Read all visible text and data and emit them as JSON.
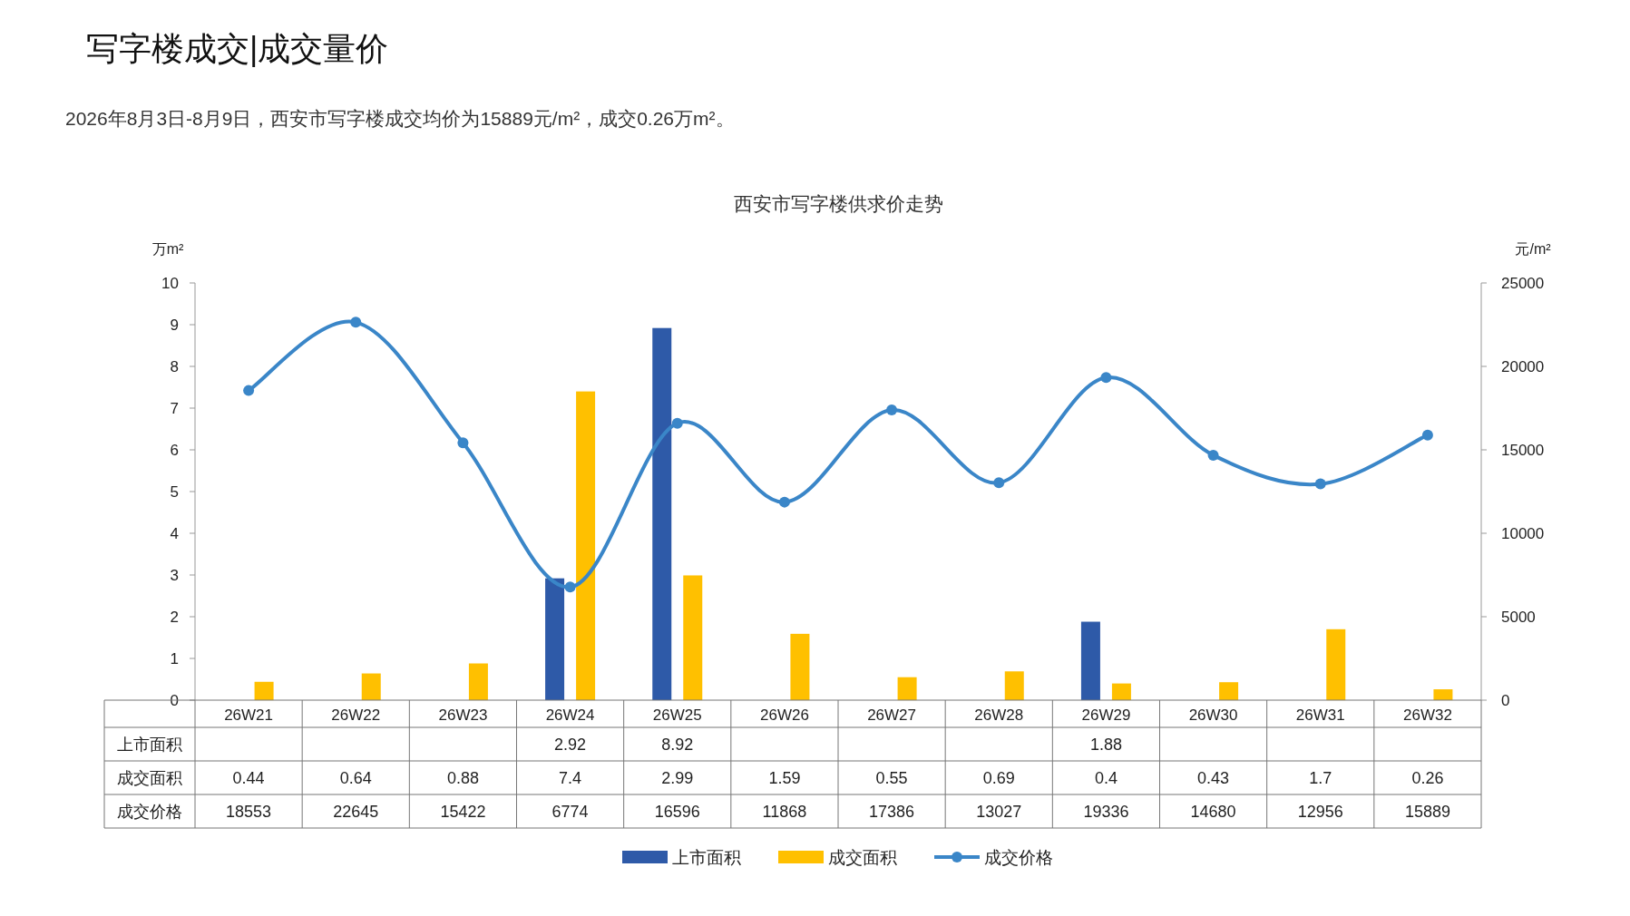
{
  "chart_data": {
    "type": "bar",
    "title": "西安市写字楼供求价走势",
    "ylabel": "万m²",
    "y2label": "元/m²",
    "annotations": [
      "写字楼成交|成交量价",
      "2026年8月3日-8月9日，西安市写字楼成交均价为15889元/m²，成交0.26万m²。"
    ],
    "categories": [
      "26W21",
      "26W22",
      "26W23",
      "26W24",
      "26W25",
      "26W26",
      "26W27",
      "26W28",
      "26W29",
      "26W30",
      "26W31",
      "26W32"
    ],
    "series": [
      {
        "name": "上市面积",
        "color": "#2e5aa8",
        "values": [
          null,
          null,
          null,
          2.92,
          8.92,
          null,
          null,
          null,
          1.88,
          null,
          null,
          null
        ]
      },
      {
        "name": "成交面积",
        "color": "#ffc000",
        "values": [
          0.44,
          0.64,
          0.88,
          7.4,
          2.99,
          1.59,
          0.55,
          0.69,
          0.4,
          0.43,
          1.7,
          0.26
        ]
      },
      {
        "name": "成交价格",
        "type": "line",
        "axis": "y2",
        "color": "#3a86c8",
        "marker": "circle",
        "values": [
          18553,
          22645,
          15422,
          6774,
          16596,
          11868,
          17386,
          13027,
          19336,
          14680,
          12956,
          15889
        ]
      }
    ],
    "ylim": [
      0,
      10
    ],
    "yticks": [
      0,
      1,
      2,
      3,
      4,
      5,
      6,
      7,
      8,
      9,
      10
    ],
    "y2lim": [
      0,
      25000
    ],
    "y2ticks": [
      0,
      5000,
      10000,
      15000,
      20000,
      25000
    ],
    "data_labels": true,
    "legend": "bottom",
    "grid": false
  }
}
